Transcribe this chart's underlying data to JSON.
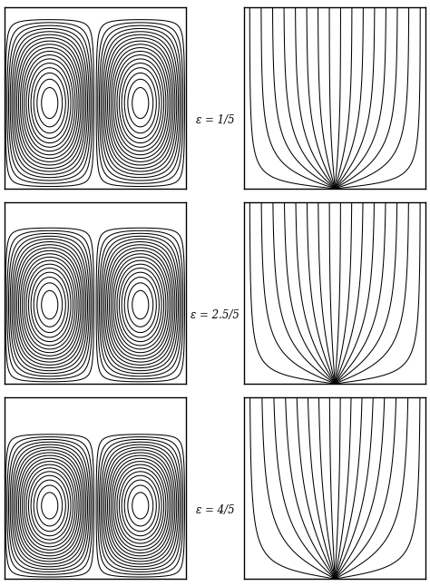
{
  "labels": [
    "ε = 1/5",
    "ε = 2.5/5",
    "ε = 4/5"
  ],
  "epsilon_vals": [
    0.2,
    0.5,
    0.8
  ],
  "bg_color": "#ffffff",
  "line_color": "#000000",
  "figsize": [
    4.74,
    6.46
  ],
  "dpi": 100,
  "n_stream_levels": 18,
  "n_temp_levels": 16
}
